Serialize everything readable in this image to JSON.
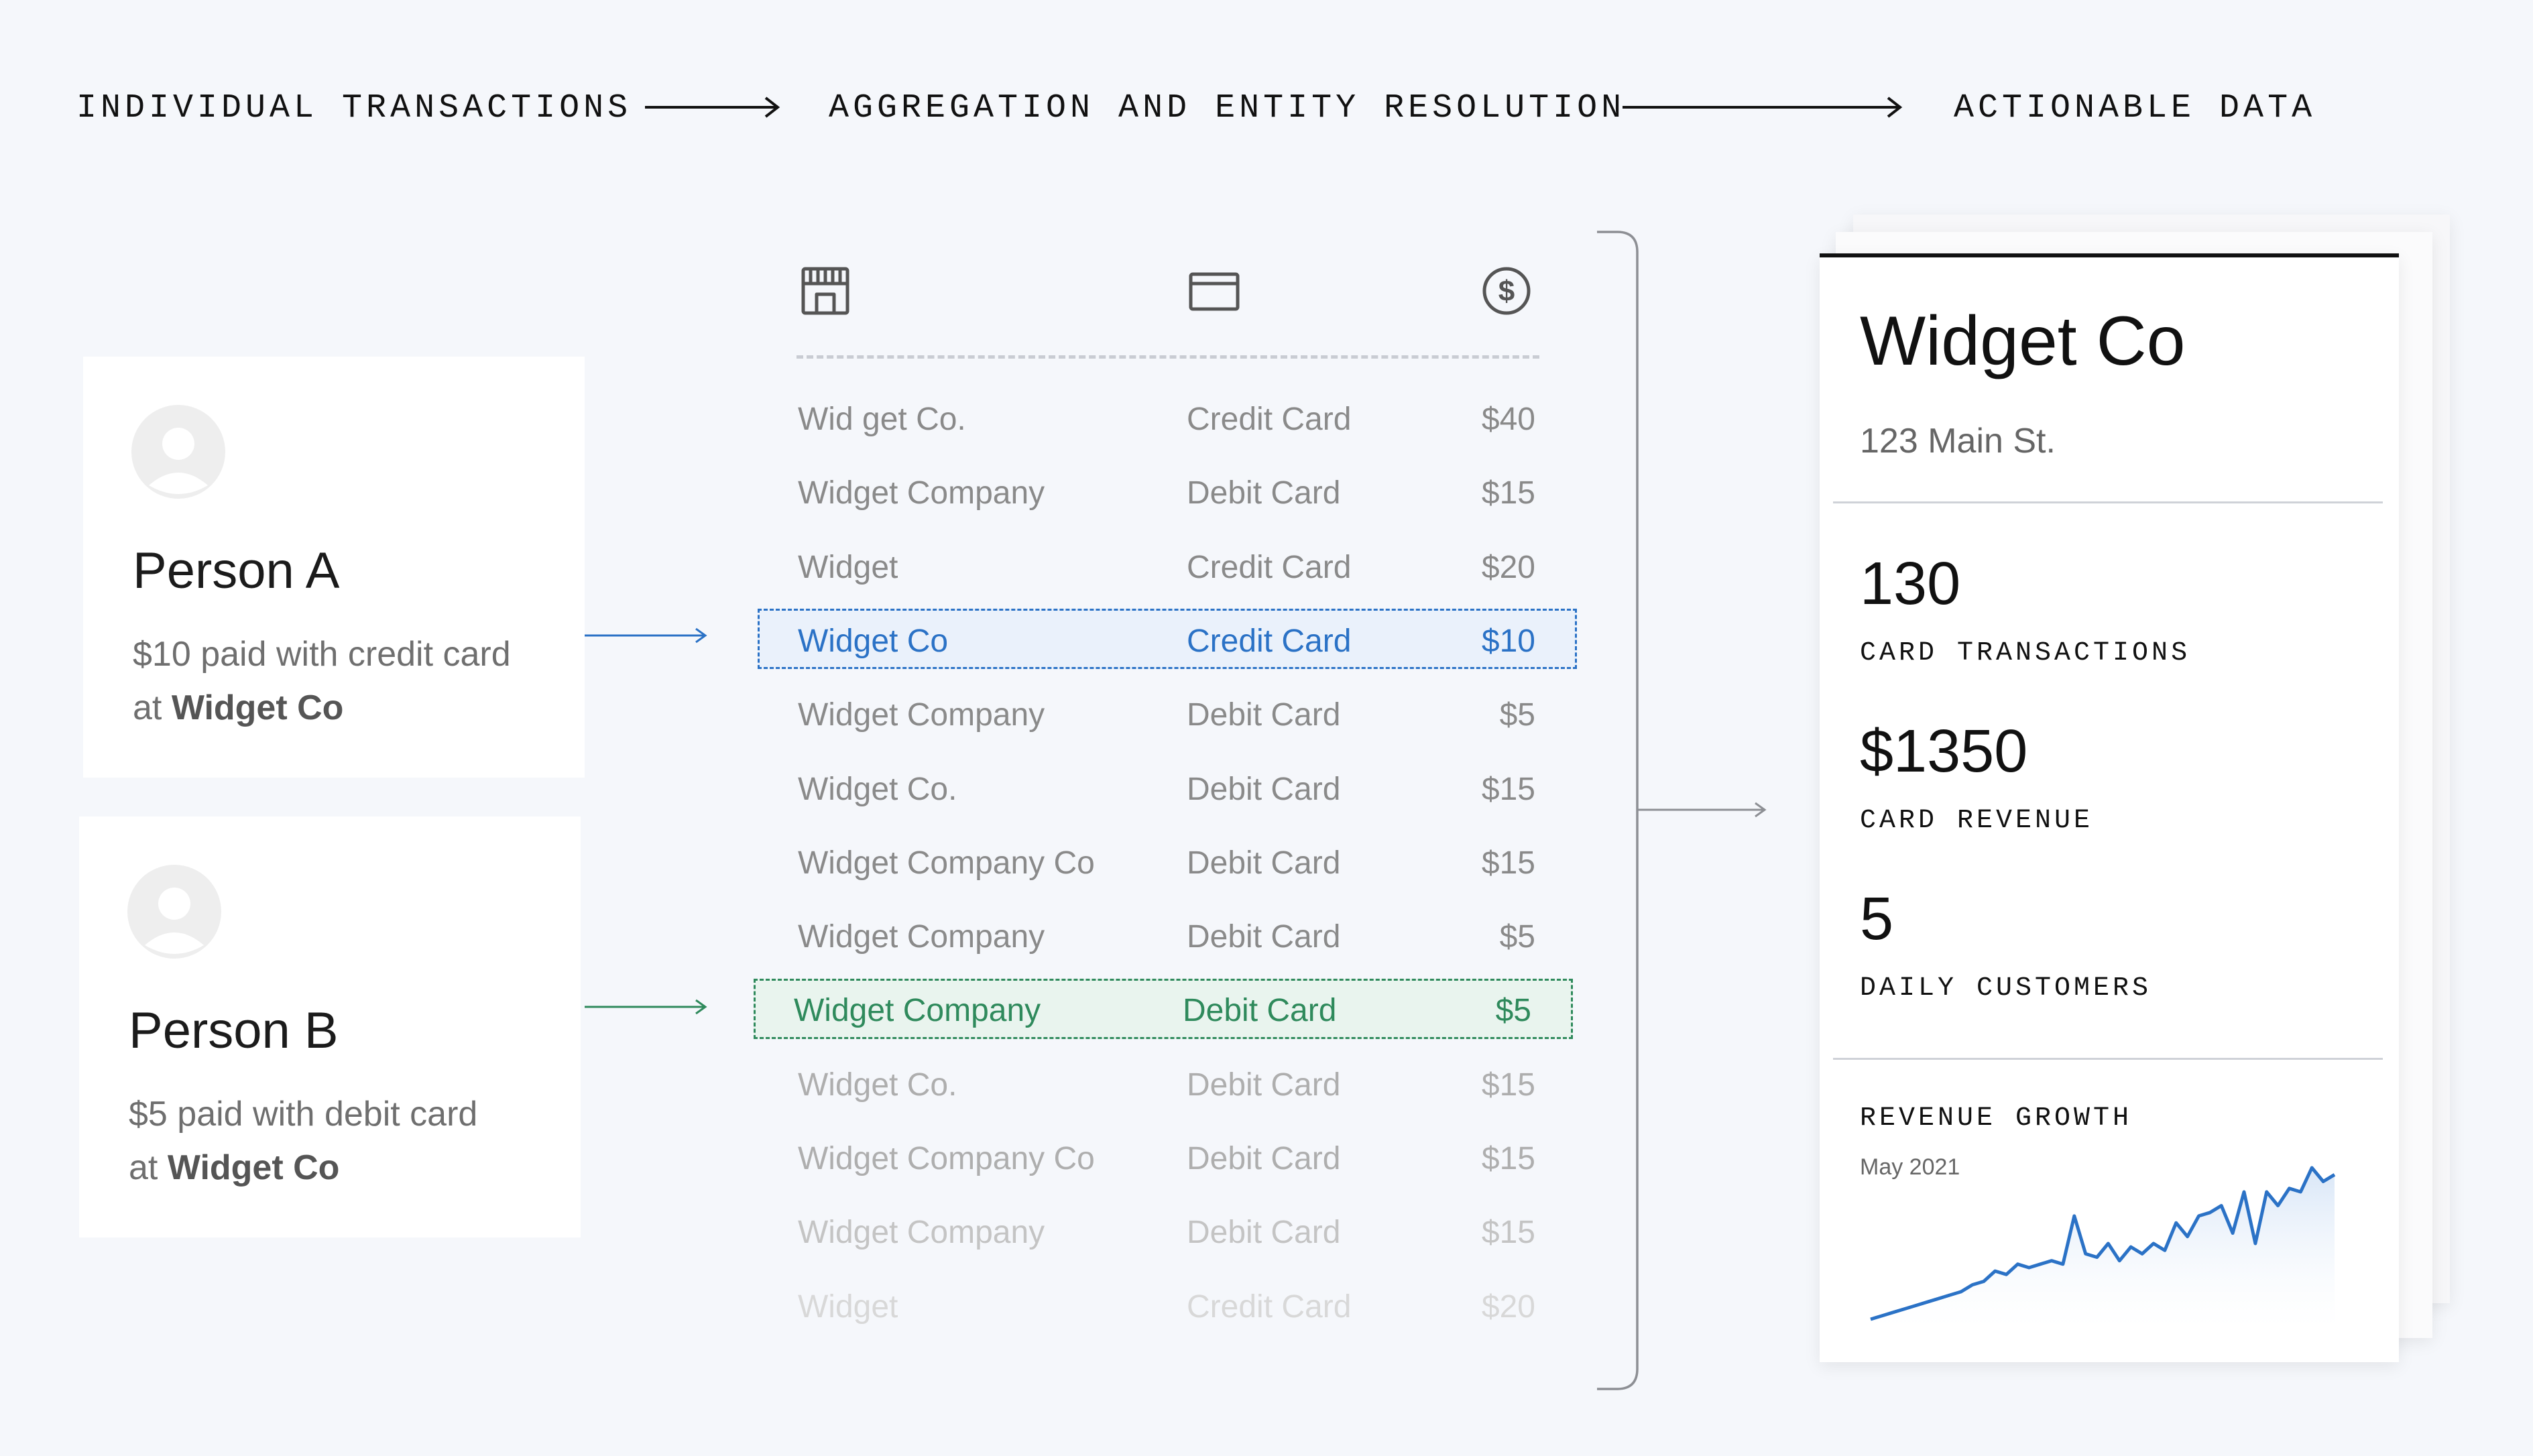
{
  "steps": {
    "individual": "INDIVIDUAL TRANSACTIONS",
    "aggregation": "AGGREGATION AND ENTITY RESOLUTION",
    "actionable": "ACTIONABLE DATA"
  },
  "persons": [
    {
      "name": "Person A",
      "desc_prefix": "$10 paid with credit card",
      "desc_at": "at ",
      "desc_merchant": "Widget Co"
    },
    {
      "name": "Person B",
      "desc_prefix": "$5 paid with debit card",
      "desc_at": "at ",
      "desc_merchant": "Widget Co"
    }
  ],
  "table": {
    "icons": [
      "storefront-icon",
      "credit-card-icon",
      "dollar-coin-icon"
    ],
    "rows": [
      {
        "merchant": "Wid get Co.",
        "method": "Credit Card",
        "amount": "$40",
        "state": "normal"
      },
      {
        "merchant": "Widget Company",
        "method": "Debit Card",
        "amount": "$15",
        "state": "normal"
      },
      {
        "merchant": "Widget",
        "method": "Credit Card",
        "amount": "$20",
        "state": "normal"
      },
      {
        "merchant": "Widget Co",
        "method": "Credit Card",
        "amount": "$10",
        "state": "highlight-blue"
      },
      {
        "merchant": "Widget Company",
        "method": "Debit Card",
        "amount": "$5",
        "state": "normal"
      },
      {
        "merchant": "Widget Co.",
        "method": "Debit Card",
        "amount": "$15",
        "state": "normal"
      },
      {
        "merchant": "Widget Company Co",
        "method": "Debit Card",
        "amount": "$15",
        "state": "normal"
      },
      {
        "merchant": "Widget Company",
        "method": "Debit Card",
        "amount": "$5",
        "state": "normal"
      },
      {
        "merchant": "Widget Company",
        "method": "Debit Card",
        "amount": "$5",
        "state": "highlight-green"
      },
      {
        "merchant": "Widget Co.",
        "method": "Debit Card",
        "amount": "$15",
        "state": "fade-1"
      },
      {
        "merchant": "Widget Company Co",
        "method": "Debit Card",
        "amount": "$15",
        "state": "fade-1"
      },
      {
        "merchant": "Widget Company",
        "method": "Debit Card",
        "amount": "$15",
        "state": "fade-2"
      },
      {
        "merchant": "Widget",
        "method": "Credit Card",
        "amount": "$20",
        "state": "fade-3"
      }
    ]
  },
  "colors": {
    "blue": "#2b72c6",
    "green": "#2f8a5c",
    "text_normal": "#8a8a8a",
    "fade_1": "#aeaeae",
    "fade_2": "#c4c4c4",
    "fade_3": "#d8d8d8"
  },
  "entity": {
    "name": "Widget Co",
    "address": "123 Main St.",
    "metrics": [
      {
        "value": "130",
        "label": "CARD TRANSACTIONS"
      },
      {
        "value": "$1350",
        "label": "CARD REVENUE"
      },
      {
        "value": "5",
        "label": "DAILY CUSTOMERS"
      }
    ],
    "growth_title": "REVENUE GROWTH",
    "growth_date": "May 2021",
    "growth_series": [
      0,
      1,
      2,
      3,
      4,
      5,
      6,
      7,
      8,
      10,
      11,
      14,
      13,
      16,
      15,
      16,
      17,
      16,
      30,
      19,
      18,
      22,
      17,
      21,
      19,
      22,
      20,
      28,
      24,
      30,
      31,
      33,
      25,
      37,
      22,
      37,
      33,
      38,
      37,
      44,
      40,
      42
    ]
  }
}
